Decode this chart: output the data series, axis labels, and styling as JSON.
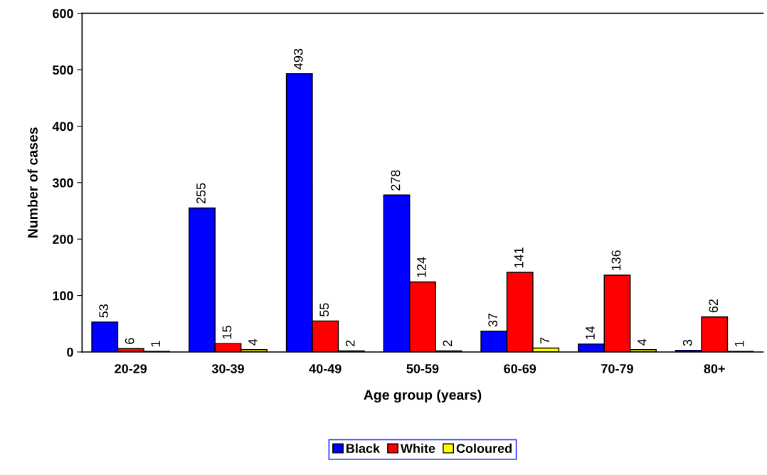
{
  "chart_data": {
    "type": "bar",
    "xlabel": "Age group (years)",
    "ylabel": "Number of cases",
    "categories": [
      "20-29",
      "30-39",
      "40-49",
      "50-59",
      "60-69",
      "70-79",
      "80+"
    ],
    "series": [
      {
        "name": "Black",
        "color": "#0000ff",
        "values": [
          53,
          255,
          493,
          278,
          37,
          14,
          3
        ]
      },
      {
        "name": "White",
        "color": "#ff0000",
        "values": [
          6,
          15,
          55,
          124,
          141,
          136,
          62
        ]
      },
      {
        "name": "Coloured",
        "color": "#ffff00",
        "values": [
          1,
          4,
          2,
          2,
          7,
          4,
          1
        ]
      }
    ],
    "ylim": [
      0,
      600
    ],
    "yticks": [
      0,
      100,
      200,
      300,
      400,
      500,
      600
    ],
    "grid": false,
    "data_labels": true,
    "legend": "bottom"
  }
}
